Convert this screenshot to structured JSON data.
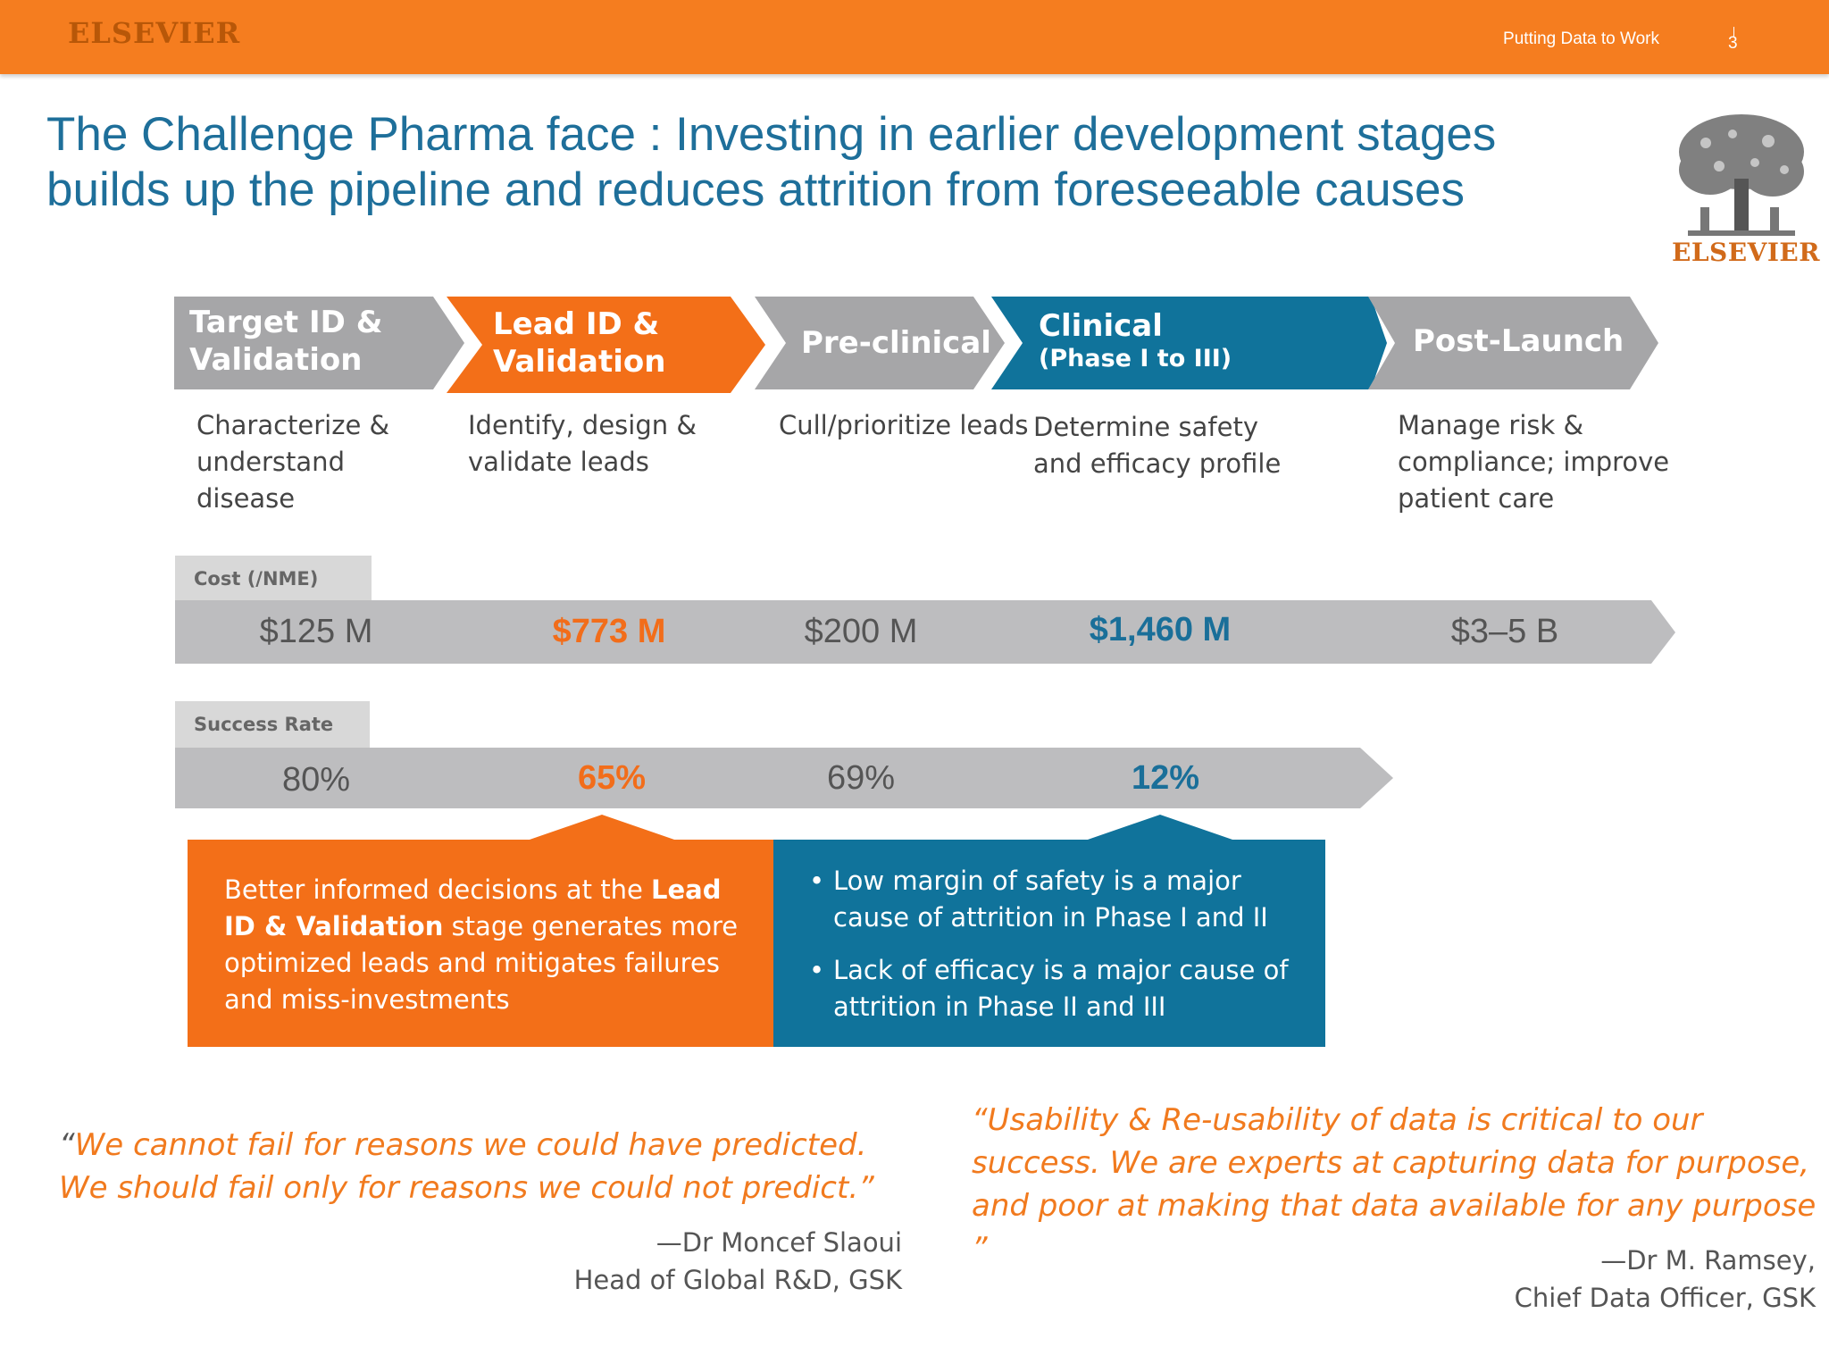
{
  "header": {
    "brand": "ELSEVIER",
    "tagline": "Putting Data to Work",
    "page_number": "3"
  },
  "title_lines": [
    "The Challenge Pharma face : Investing in earlier development stages",
    "builds up the pipeline and reduces attrition from foreseeable causes"
  ],
  "logo": {
    "text": "ELSEVIER",
    "icon": "elsevier-tree-logo"
  },
  "stages": [
    {
      "line1": "Target ID &",
      "line2": "Validation",
      "color": "#a6a6a8",
      "desc": [
        "Characterize &",
        "understand",
        "disease"
      ]
    },
    {
      "line1": "Lead ID &",
      "line2": "Validation",
      "color": "#f36f18",
      "desc": [
        "Identify, design &",
        "validate leads"
      ]
    },
    {
      "line1": "Pre-clinical",
      "line2": "",
      "color": "#a6a6a8",
      "desc": [
        "Cull/prioritize leads"
      ]
    },
    {
      "line1": "Clinical",
      "line2": "(Phase I to III)",
      "color": "#10739b",
      "desc": [
        "Determine safety",
        "and efficacy profile"
      ]
    },
    {
      "line1": "Post-Launch",
      "line2": "",
      "color": "#a6a6a8",
      "desc": [
        "Manage risk &",
        "compliance; improve",
        "patient care"
      ]
    }
  ],
  "cost": {
    "label": "Cost (/NME)",
    "values": [
      "$125 M",
      "$773 M",
      "$200 M",
      "$1,460 M",
      "$3–5 B"
    ]
  },
  "success": {
    "label": "Success Rate",
    "values": [
      "80%",
      "65%",
      "69%",
      "12%"
    ]
  },
  "callout_orange": {
    "pre": "Better informed decisions at the ",
    "bold": "Lead ID & Validation",
    "post": " stage generates more optimized leads and mitigates failures and miss-investments"
  },
  "callout_blue": {
    "bullets": [
      "Low margin of safety is a major cause of attrition in Phase I and II",
      "Lack of efficacy is a major cause of attrition in Phase II and III"
    ]
  },
  "quote_left": {
    "open": "“",
    "text": "We cannot fail for reasons we could have predicted. We should fail only for reasons we could not predict.”",
    "author": "—Dr Moncef Slaoui",
    "role": "Head of Global R&D, GSK"
  },
  "quote_right": {
    "text": "“Usability & Re-usability of data is critical to our success. We are experts at capturing data for purpose, and poor at making that data available for any purpose ”",
    "author": "—Dr M. Ramsey,",
    "role": "Chief  Data Officer, GSK"
  }
}
